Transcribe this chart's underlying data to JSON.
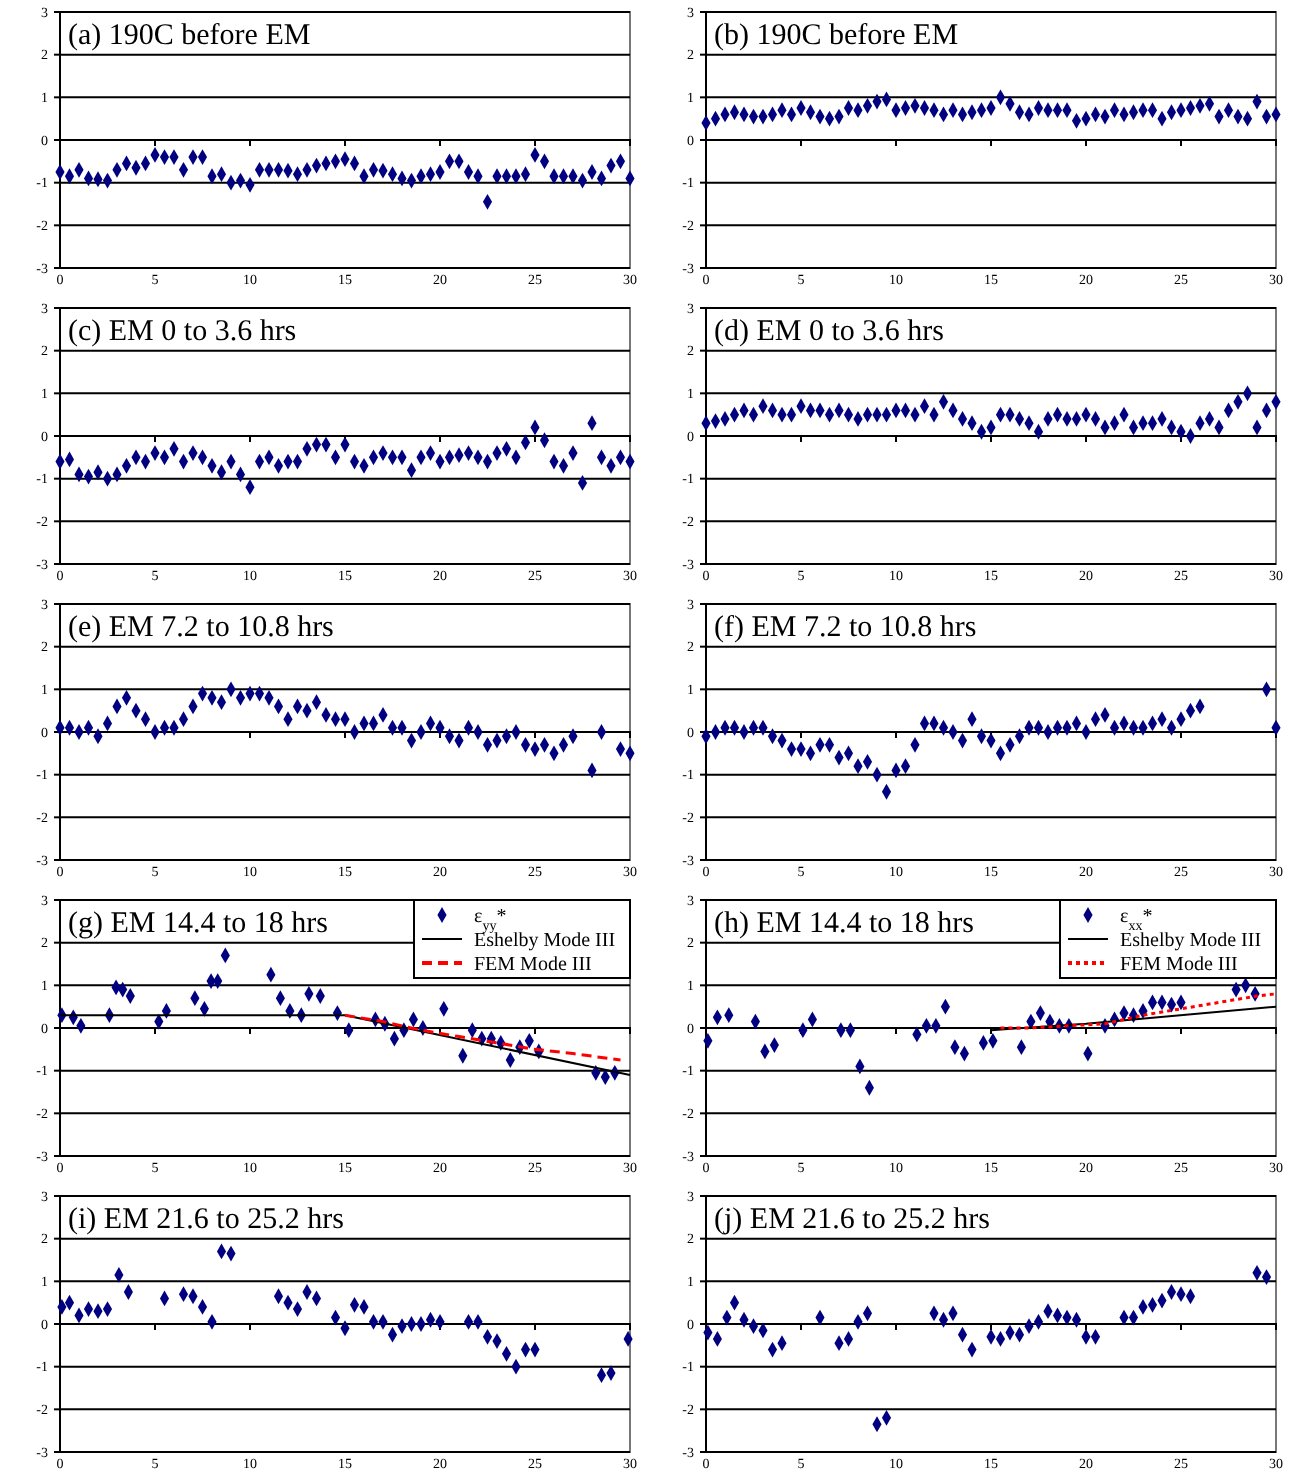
{
  "chart_data": [
    {
      "type": "scatter",
      "title": "(a) 190C before EM",
      "marker": "diamond",
      "grid": "y",
      "xlim": [
        0,
        30
      ],
      "ylim": [
        -3,
        3
      ],
      "xticks": [
        0,
        5,
        10,
        15,
        20,
        25,
        30
      ],
      "yticks": [
        -3,
        -2,
        -1,
        0,
        1,
        2,
        3
      ],
      "x": [
        0,
        0.5,
        1,
        1.5,
        2,
        2.5,
        3,
        3.5,
        4,
        4.5,
        5,
        5.5,
        6,
        6.5,
        7,
        7.5,
        8,
        8.5,
        9,
        9.5,
        10,
        10.5,
        11,
        11.5,
        12,
        12.5,
        13,
        13.5,
        14,
        14.5,
        15,
        15.5,
        16,
        16.5,
        17,
        17.5,
        18,
        18.5,
        19,
        19.5,
        20,
        20.5,
        21,
        21.5,
        22,
        22.5,
        23,
        23.5,
        24,
        24.5,
        25,
        25.5,
        26,
        26.5,
        27,
        27.5,
        28,
        28.5,
        29,
        29.5,
        30
      ],
      "series": [
        {
          "color": "#000080",
          "values": [
            -0.75,
            -0.85,
            -0.7,
            -0.9,
            -0.92,
            -0.95,
            -0.7,
            -0.55,
            -0.65,
            -0.55,
            -0.35,
            -0.4,
            -0.4,
            -0.7,
            -0.4,
            -0.4,
            -0.85,
            -0.8,
            -1.0,
            -0.95,
            -1.05,
            -0.7,
            -0.7,
            -0.7,
            -0.72,
            -0.8,
            -0.7,
            -0.6,
            -0.55,
            -0.5,
            -0.45,
            -0.55,
            -0.85,
            -0.7,
            -0.72,
            -0.8,
            -0.9,
            -0.95,
            -0.85,
            -0.8,
            -0.75,
            -0.5,
            -0.5,
            -0.75,
            -0.85,
            -1.45,
            -0.85,
            -0.85,
            -0.85,
            -0.8,
            -0.35,
            -0.5,
            -0.85,
            -0.85,
            -0.85,
            -0.95,
            -0.75,
            -0.9,
            -0.6,
            -0.5,
            -0.9
          ]
        }
      ]
    },
    {
      "type": "scatter",
      "title": "(b) 190C before EM",
      "marker": "diamond",
      "grid": "y",
      "xlim": [
        0,
        30
      ],
      "ylim": [
        -3,
        3
      ],
      "xticks": [
        0,
        5,
        10,
        15,
        20,
        25,
        30
      ],
      "yticks": [
        -3,
        -2,
        -1,
        0,
        1,
        2,
        3
      ],
      "x": [
        0,
        0.5,
        1,
        1.5,
        2,
        2.5,
        3,
        3.5,
        4,
        4.5,
        5,
        5.5,
        6,
        6.5,
        7,
        7.5,
        8,
        8.5,
        9,
        9.5,
        10,
        10.5,
        11,
        11.5,
        12,
        12.5,
        13,
        13.5,
        14,
        14.5,
        15,
        15.5,
        16,
        16.5,
        17,
        17.5,
        18,
        18.5,
        19,
        19.5,
        20,
        20.5,
        21,
        21.5,
        22,
        22.5,
        23,
        23.5,
        24,
        24.5,
        25,
        25.5,
        26,
        26.5,
        27,
        27.5,
        28,
        28.5,
        29,
        29.5,
        30
      ],
      "series": [
        {
          "color": "#000080",
          "values": [
            0.4,
            0.5,
            0.6,
            0.65,
            0.6,
            0.55,
            0.55,
            0.6,
            0.7,
            0.6,
            0.75,
            0.65,
            0.55,
            0.5,
            0.55,
            0.75,
            0.7,
            0.8,
            0.9,
            0.95,
            0.7,
            0.75,
            0.8,
            0.75,
            0.7,
            0.6,
            0.7,
            0.6,
            0.65,
            0.7,
            0.75,
            1.0,
            0.85,
            0.65,
            0.6,
            0.75,
            0.7,
            0.7,
            0.7,
            0.45,
            0.5,
            0.6,
            0.55,
            0.7,
            0.6,
            0.65,
            0.7,
            0.7,
            0.5,
            0.65,
            0.7,
            0.75,
            0.8,
            0.85,
            0.55,
            0.7,
            0.55,
            0.5,
            0.9,
            0.55,
            0.6
          ]
        }
      ]
    },
    {
      "type": "scatter",
      "title": "(c) EM 0 to 3.6 hrs",
      "marker": "diamond",
      "grid": "y",
      "xlim": [
        0,
        30
      ],
      "ylim": [
        -3,
        3
      ],
      "xticks": [
        0,
        5,
        10,
        15,
        20,
        25,
        30
      ],
      "yticks": [
        -3,
        -2,
        -1,
        0,
        1,
        2,
        3
      ],
      "x": [
        0,
        0.5,
        1,
        1.5,
        2,
        2.5,
        3,
        3.5,
        4,
        4.5,
        5,
        5.5,
        6,
        6.5,
        7,
        7.5,
        8,
        8.5,
        9,
        9.5,
        10,
        10.5,
        11,
        11.5,
        12,
        12.5,
        13,
        13.5,
        14,
        14.5,
        15,
        15.5,
        16,
        16.5,
        17,
        17.5,
        18,
        18.5,
        19,
        19.5,
        20,
        20.5,
        21,
        21.5,
        22,
        22.5,
        23,
        23.5,
        24,
        24.5,
        25,
        25.5,
        26,
        26.5,
        27,
        27.5,
        28,
        28.5,
        29,
        29.5,
        30
      ],
      "series": [
        {
          "color": "#000080",
          "values": [
            -0.6,
            -0.55,
            -0.9,
            -0.95,
            -0.85,
            -1.0,
            -0.9,
            -0.7,
            -0.5,
            -0.6,
            -0.4,
            -0.5,
            -0.3,
            -0.6,
            -0.4,
            -0.5,
            -0.7,
            -0.85,
            -0.6,
            -0.9,
            -1.2,
            -0.6,
            -0.5,
            -0.7,
            -0.6,
            -0.6,
            -0.3,
            -0.2,
            -0.2,
            -0.5,
            -0.2,
            -0.6,
            -0.7,
            -0.5,
            -0.4,
            -0.5,
            -0.5,
            -0.8,
            -0.5,
            -0.4,
            -0.6,
            -0.5,
            -0.45,
            -0.4,
            -0.5,
            -0.6,
            -0.4,
            -0.3,
            -0.5,
            -0.15,
            0.2,
            -0.1,
            -0.6,
            -0.7,
            -0.4,
            -1.1,
            0.3,
            -0.5,
            -0.7,
            -0.5,
            -0.6
          ]
        }
      ]
    },
    {
      "type": "scatter",
      "title": "(d) EM 0 to 3.6 hrs",
      "marker": "diamond",
      "grid": "y",
      "xlim": [
        0,
        30
      ],
      "ylim": [
        -3,
        3
      ],
      "xticks": [
        0,
        5,
        10,
        15,
        20,
        25,
        30
      ],
      "yticks": [
        -3,
        -2,
        -1,
        0,
        1,
        2,
        3
      ],
      "x": [
        0,
        0.5,
        1,
        1.5,
        2,
        2.5,
        3,
        3.5,
        4,
        4.5,
        5,
        5.5,
        6,
        6.5,
        7,
        7.5,
        8,
        8.5,
        9,
        9.5,
        10,
        10.5,
        11,
        11.5,
        12,
        12.5,
        13,
        13.5,
        14,
        14.5,
        15,
        15.5,
        16,
        16.5,
        17,
        17.5,
        18,
        18.5,
        19,
        19.5,
        20,
        20.5,
        21,
        21.5,
        22,
        22.5,
        23,
        23.5,
        24,
        24.5,
        25,
        25.5,
        26,
        26.5,
        27,
        27.5,
        28,
        28.5,
        29,
        29.5,
        30
      ],
      "series": [
        {
          "color": "#000080",
          "values": [
            0.3,
            0.35,
            0.4,
            0.5,
            0.6,
            0.5,
            0.7,
            0.6,
            0.5,
            0.5,
            0.7,
            0.6,
            0.6,
            0.5,
            0.6,
            0.5,
            0.4,
            0.5,
            0.5,
            0.5,
            0.6,
            0.6,
            0.5,
            0.7,
            0.5,
            0.8,
            0.6,
            0.4,
            0.3,
            0.1,
            0.2,
            0.5,
            0.5,
            0.4,
            0.3,
            0.1,
            0.4,
            0.5,
            0.4,
            0.4,
            0.5,
            0.4,
            0.2,
            0.3,
            0.5,
            0.2,
            0.3,
            0.3,
            0.4,
            0.2,
            0.1,
            0.0,
            0.3,
            0.4,
            0.2,
            0.6,
            0.8,
            1.0,
            0.2,
            0.6,
            0.8
          ]
        }
      ]
    },
    {
      "type": "scatter",
      "title": "(e) EM 7.2 to 10.8 hrs",
      "marker": "diamond",
      "grid": "y",
      "xlim": [
        0,
        30
      ],
      "ylim": [
        -3,
        3
      ],
      "xticks": [
        0,
        5,
        10,
        15,
        20,
        25,
        30
      ],
      "yticks": [
        -3,
        -2,
        -1,
        0,
        1,
        2,
        3
      ],
      "x": [
        0,
        0.5,
        1,
        1.5,
        2,
        2.5,
        3,
        3.5,
        4,
        4.5,
        5,
        5.5,
        6,
        6.5,
        7,
        7.5,
        8,
        8.5,
        9,
        9.5,
        10,
        10.5,
        11,
        11.5,
        12,
        12.5,
        13,
        13.5,
        14,
        14.5,
        15,
        15.5,
        16,
        16.5,
        17,
        17.5,
        18,
        18.5,
        19,
        19.5,
        20,
        20.5,
        21,
        21.5,
        22,
        22.5,
        23,
        23.5,
        24,
        24.5,
        25,
        25.5,
        26,
        26.5,
        27,
        27.5,
        28,
        28.5,
        29,
        29.5,
        30
      ],
      "series": [
        {
          "color": "#000080",
          "values": [
            0.1,
            0.1,
            0.0,
            0.1,
            -0.1,
            0.2,
            0.6,
            0.8,
            0.5,
            0.3,
            0.0,
            0.1,
            0.1,
            0.3,
            0.6,
            0.9,
            0.8,
            0.7,
            1.0,
            0.8,
            0.9,
            0.9,
            0.8,
            0.6,
            0.3,
            0.6,
            0.5,
            0.7,
            0.4,
            0.3,
            0.3,
            0.0,
            0.2,
            0.2,
            0.4,
            0.1,
            0.1,
            -0.2,
            0.0,
            0.2,
            0.1,
            -0.1,
            -0.2,
            0.1,
            0.0,
            -0.3,
            -0.2,
            -0.1,
            0.0,
            -0.3,
            -0.4,
            -0.3,
            -0.5,
            -0.3,
            -0.1,
            null,
            -0.9,
            0.0,
            null,
            -0.4,
            -0.5
          ]
        }
      ]
    },
    {
      "type": "scatter",
      "title": "(f) EM 7.2 to 10.8 hrs",
      "marker": "diamond",
      "grid": "y",
      "xlim": [
        0,
        30
      ],
      "ylim": [
        -3,
        3
      ],
      "xticks": [
        0,
        5,
        10,
        15,
        20,
        25,
        30
      ],
      "yticks": [
        -3,
        -2,
        -1,
        0,
        1,
        2,
        3
      ],
      "x": [
        0,
        0.5,
        1,
        1.5,
        2,
        2.5,
        3,
        3.5,
        4,
        4.5,
        5,
        5.5,
        6,
        6.5,
        7,
        7.5,
        8,
        8.5,
        9,
        9.5,
        10,
        10.5,
        11,
        11.5,
        12,
        12.5,
        13,
        13.5,
        14,
        14.5,
        15,
        15.5,
        16,
        16.5,
        17,
        17.5,
        18,
        18.5,
        19,
        19.5,
        20,
        20.5,
        21,
        21.5,
        22,
        22.5,
        23,
        23.5,
        24,
        24.5,
        25,
        25.5,
        26,
        26.5,
        27,
        27.5,
        28,
        28.5,
        29,
        29.5,
        30
      ],
      "series": [
        {
          "color": "#000080",
          "values": [
            -0.1,
            0.0,
            0.1,
            0.1,
            0.0,
            0.1,
            0.1,
            -0.1,
            -0.2,
            -0.4,
            -0.4,
            -0.5,
            -0.3,
            -0.3,
            -0.6,
            -0.5,
            -0.8,
            -0.7,
            -1.0,
            -1.4,
            -0.9,
            -0.8,
            -0.3,
            0.2,
            0.2,
            0.1,
            0.0,
            -0.2,
            0.3,
            -0.1,
            -0.2,
            -0.5,
            -0.3,
            -0.1,
            0.1,
            0.1,
            0.0,
            0.1,
            0.1,
            0.2,
            0.0,
            0.3,
            0.4,
            0.1,
            0.2,
            0.1,
            0.1,
            0.2,
            0.3,
            0.1,
            0.3,
            0.5,
            0.6,
            null,
            null,
            null,
            null,
            null,
            null,
            1.0,
            0.1
          ]
        }
      ]
    },
    {
      "type": "scatter",
      "title": "(g) EM 14.4 to 18 hrs",
      "marker": "diamond",
      "grid": "y",
      "legend": "top right",
      "xlim": [
        0,
        30
      ],
      "ylim": [
        -3,
        3
      ],
      "xticks": [
        0,
        5,
        10,
        15,
        20,
        25,
        30
      ],
      "yticks": [
        -3,
        -2,
        -1,
        0,
        1,
        2,
        3
      ],
      "series": [
        {
          "name": "ε$_{yy}$*",
          "color": "#000080",
          "x": [
            0.1,
            0.7,
            1.1,
            2.6,
            2.95,
            3.3,
            3.7,
            5.2,
            5.6,
            7.1,
            7.6,
            7.95,
            8.3,
            8.7,
            11.1,
            11.6,
            12.1,
            12.7,
            13.1,
            13.7,
            14.6,
            15.2,
            16.6,
            17.1,
            17.6,
            18.1,
            18.6,
            19.1,
            20.2,
            21.2,
            21.7,
            22.2,
            22.7,
            23.2,
            23.7,
            24.2,
            24.7,
            25.2,
            28.2,
            28.7,
            29.2
          ],
          "values": [
            0.3,
            0.25,
            0.05,
            0.3,
            0.95,
            0.9,
            0.75,
            0.15,
            0.4,
            0.7,
            0.45,
            1.1,
            1.1,
            1.7,
            1.25,
            0.7,
            0.4,
            0.3,
            0.8,
            0.75,
            0.35,
            -0.05,
            0.2,
            0.1,
            -0.25,
            -0.05,
            0.2,
            0.0,
            0.45,
            -0.65,
            -0.05,
            -0.25,
            -0.25,
            -0.35,
            -0.75,
            -0.45,
            -0.3,
            -0.55,
            -1.05,
            -1.15,
            -1.05
          ]
        },
        {
          "name": "Eshelby Mode III",
          "type": "line",
          "marker": "none",
          "color": "#000000",
          "line_style": "solid",
          "x": [
            0,
            15,
            30
          ],
          "values": [
            0.3,
            0.3,
            -1.1
          ]
        },
        {
          "name": "FEM Mode III",
          "type": "line",
          "marker": "none",
          "color": "#ff0000",
          "line_style": "dashed",
          "x": [
            15,
            17,
            19,
            21,
            23,
            25,
            27,
            29.5
          ],
          "values": [
            0.3,
            0.15,
            -0.05,
            -0.2,
            -0.35,
            -0.5,
            -0.6,
            -0.75
          ]
        }
      ]
    },
    {
      "type": "scatter",
      "title": "(h) EM 14.4 to 18 hrs",
      "marker": "diamond",
      "grid": "y",
      "legend": "top right",
      "xlim": [
        0,
        30
      ],
      "ylim": [
        -3,
        3
      ],
      "xticks": [
        0,
        5,
        10,
        15,
        20,
        25,
        30
      ],
      "yticks": [
        -3,
        -2,
        -1,
        0,
        1,
        2,
        3
      ],
      "series": [
        {
          "name": "ε$_{xx}$*",
          "color": "#000080",
          "x": [
            0.1,
            0.6,
            1.2,
            2.6,
            3.1,
            3.6,
            5.1,
            5.6,
            7.1,
            7.6,
            8.1,
            8.6,
            11.1,
            11.6,
            12.1,
            12.6,
            13.1,
            13.6,
            14.6,
            15.1,
            16.6,
            17.1,
            17.6,
            18.1,
            18.6,
            19.1,
            20.1,
            21,
            21.5,
            22,
            22.5,
            23,
            23.5,
            24,
            24.5,
            25,
            27.9,
            28.4,
            28.9
          ],
          "values": [
            -0.3,
            0.25,
            0.3,
            0.15,
            -0.55,
            -0.4,
            -0.05,
            0.2,
            -0.05,
            -0.05,
            -0.9,
            -1.4,
            -0.15,
            0.05,
            0.05,
            0.5,
            -0.45,
            -0.6,
            -0.35,
            -0.3,
            -0.45,
            0.15,
            0.35,
            0.15,
            0.05,
            0.05,
            -0.6,
            0.05,
            0.2,
            0.35,
            0.3,
            0.4,
            0.6,
            0.6,
            0.55,
            0.6,
            0.9,
            1.0,
            0.8
          ]
        },
        {
          "name": "Eshelby Mode III",
          "type": "line",
          "marker": "none",
          "color": "#000000",
          "line_style": "solid",
          "x": [
            15,
            20,
            30
          ],
          "values": [
            -0.05,
            0.1,
            0.5
          ]
        },
        {
          "name": "FEM Mode III",
          "type": "line",
          "marker": "none",
          "color": "#ff0000",
          "line_style": "dotted",
          "x": [
            15.5,
            17,
            19,
            21,
            23,
            25,
            27,
            29,
            30
          ],
          "values": [
            0,
            0,
            0.05,
            0.1,
            0.3,
            0.45,
            0.6,
            0.75,
            0.8
          ]
        }
      ]
    },
    {
      "type": "scatter",
      "title": "(i) EM 21.6 to 25.2 hrs",
      "marker": "diamond",
      "grid": "y",
      "xlim": [
        0,
        30
      ],
      "ylim": [
        -3,
        3
      ],
      "xticks": [
        0,
        5,
        10,
        15,
        20,
        25,
        30
      ],
      "yticks": [
        -3,
        -2,
        -1,
        0,
        1,
        2,
        3
      ],
      "series": [
        {
          "color": "#000080",
          "x": [
            0.1,
            0.5,
            1,
            1.5,
            2,
            2.5,
            3.1,
            3.6,
            5.5,
            6.5,
            7,
            7.5,
            8,
            8.5,
            9,
            11.5,
            12,
            12.5,
            13,
            13.5,
            14.5,
            15,
            15.5,
            16,
            16.5,
            17,
            17.5,
            18,
            18.5,
            19,
            19.5,
            20,
            21.5,
            22,
            22.5,
            23,
            23.5,
            24,
            24.5,
            25,
            28.5,
            29,
            29.9
          ],
          "values": [
            0.4,
            0.5,
            0.2,
            0.35,
            0.3,
            0.35,
            1.15,
            0.75,
            0.6,
            0.7,
            0.65,
            0.4,
            0.05,
            1.7,
            1.65,
            0.65,
            0.5,
            0.35,
            0.75,
            0.6,
            0.15,
            -0.1,
            0.45,
            0.4,
            0.05,
            0.05,
            -0.25,
            -0.05,
            0.0,
            0.0,
            0.1,
            0.05,
            0.05,
            0.05,
            -0.3,
            -0.4,
            -0.7,
            -1.0,
            -0.6,
            -0.6,
            -1.2,
            -1.15,
            -0.35
          ]
        }
      ]
    },
    {
      "type": "scatter",
      "title": "(j) EM 21.6 to 25.2 hrs",
      "marker": "diamond",
      "grid": "y",
      "xlim": [
        0,
        30
      ],
      "ylim": [
        -3,
        3
      ],
      "xticks": [
        0,
        5,
        10,
        15,
        20,
        25,
        30
      ],
      "yticks": [
        -3,
        -2,
        -1,
        0,
        1,
        2,
        3
      ],
      "series": [
        {
          "color": "#000080",
          "x": [
            0.1,
            0.6,
            1.1,
            1.5,
            2,
            2.5,
            3,
            3.5,
            4,
            6,
            7,
            7.5,
            8,
            8.5,
            9,
            9.5,
            12,
            12.5,
            13,
            13.5,
            14,
            15,
            15.5,
            16,
            16.5,
            17,
            17.5,
            18,
            18.5,
            19,
            19.5,
            20,
            20.5,
            22,
            22.5,
            23,
            23.5,
            24,
            24.5,
            25,
            25.5,
            29,
            29.5
          ],
          "values": [
            -0.2,
            -0.35,
            0.15,
            0.5,
            0.1,
            -0.05,
            -0.15,
            -0.6,
            -0.45,
            0.15,
            -0.45,
            -0.35,
            0.05,
            0.25,
            -2.35,
            -2.2,
            0.25,
            0.1,
            0.25,
            -0.25,
            -0.6,
            -0.3,
            -0.35,
            -0.2,
            -0.25,
            -0.05,
            0.05,
            0.3,
            0.2,
            0.15,
            0.1,
            -0.3,
            -0.3,
            0.15,
            0.15,
            0.4,
            0.45,
            0.55,
            0.75,
            0.7,
            0.65,
            1.2,
            1.1
          ]
        }
      ]
    }
  ]
}
